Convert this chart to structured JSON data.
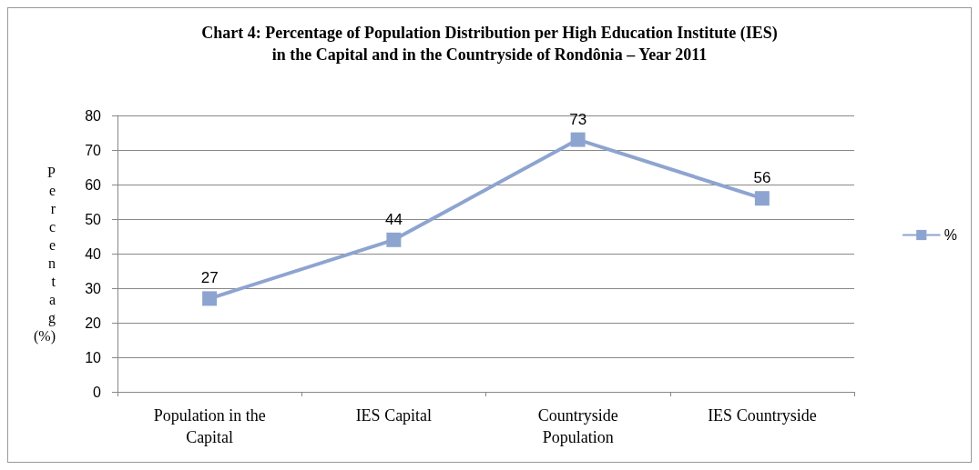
{
  "chart_data": {
    "type": "line",
    "title": "Chart 4: Percentage of Population Distribution per High Education Institute (IES)\nin the Capital and in the Countryside of Rondônia – Year 2011",
    "ylabel": "Percentag (%)",
    "categories": [
      "Population in the\nCapital",
      "IES Capital",
      "Countryside\nPopulation",
      "IES Countryside"
    ],
    "series": [
      {
        "name": "%",
        "color": "#8ea4d0",
        "values": [
          27,
          44,
          73,
          56
        ]
      }
    ],
    "ylim": [
      0,
      80
    ],
    "yticks": [
      0,
      10,
      20,
      30,
      40,
      50,
      60,
      70,
      80
    ],
    "grid": "y",
    "legend": "right",
    "marker": "square",
    "data_labels": true
  }
}
